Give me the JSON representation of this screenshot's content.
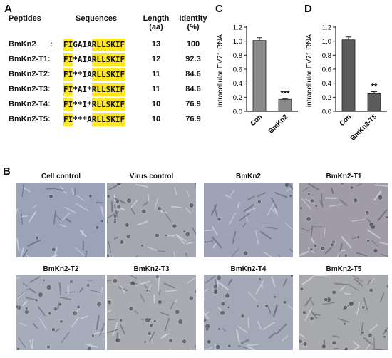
{
  "panels": {
    "a": "A",
    "b": "B",
    "c": "C",
    "d": "D"
  },
  "table": {
    "headers": {
      "peptides": "Peptides",
      "sequences": "Sequences",
      "length": "Length",
      "length_unit": "(aa)",
      "identity": "Identity",
      "identity_unit": "(%)"
    },
    "rows": [
      {
        "name": "BmKn2",
        "sep": ":",
        "seq": [
          {
            "t": "FI",
            "h": true
          },
          {
            "t": "GAIA",
            "h": false
          },
          {
            "t": "RLLSKIF",
            "h": true
          }
        ],
        "length": "13",
        "identity": "100"
      },
      {
        "name": "BmKn2-T1:",
        "sep": "",
        "seq": [
          {
            "t": "FI",
            "h": true
          },
          {
            "t": "*AIA",
            "h": false
          },
          {
            "t": "RLLSKIF",
            "h": true
          }
        ],
        "length": "12",
        "identity": "92.3"
      },
      {
        "name": "BmKn2-T2:",
        "sep": "",
        "seq": [
          {
            "t": "FI",
            "h": true
          },
          {
            "t": "**IA",
            "h": false
          },
          {
            "t": "RLLSKIF",
            "h": true
          }
        ],
        "length": "11",
        "identity": "84.6"
      },
      {
        "name": "BmKn2-T3:",
        "sep": "",
        "seq": [
          {
            "t": "FI",
            "h": true
          },
          {
            "t": "*AI*",
            "h": false
          },
          {
            "t": "RLLSKIF",
            "h": true
          }
        ],
        "length": "11",
        "identity": "84.6"
      },
      {
        "name": "BmKn2-T4:",
        "sep": "",
        "seq": [
          {
            "t": "FI",
            "h": true
          },
          {
            "t": "**I*",
            "h": false
          },
          {
            "t": "RLLSKIF",
            "h": true
          }
        ],
        "length": "10",
        "identity": "76.9"
      },
      {
        "name": "BmKn2-T5:",
        "sep": "",
        "seq": [
          {
            "t": "FI",
            "h": true
          },
          {
            "t": "***A",
            "h": false
          },
          {
            "t": "RLLSKIF",
            "h": true
          }
        ],
        "length": "10",
        "identity": "76.9"
      }
    ]
  },
  "chart_data": [
    {
      "type": "bar",
      "panel": "C",
      "categories": [
        "Con",
        "BmKn2"
      ],
      "values": [
        1.01,
        0.17
      ],
      "errors": [
        0.04,
        0.01
      ],
      "significance": [
        "",
        "***"
      ],
      "ylabel": "intracellular EV71 RNA",
      "ylim": [
        0,
        1.2
      ],
      "yticks": [
        "0.0",
        "0.2",
        "0.4",
        "0.6",
        "0.8",
        "1.0",
        "1.2"
      ],
      "colors": [
        "#8a8a8a",
        "#8a8a8a"
      ]
    },
    {
      "type": "bar",
      "panel": "D",
      "categories": [
        "Con",
        "BmKn2-T5"
      ],
      "values": [
        1.02,
        0.25
      ],
      "errors": [
        0.04,
        0.03
      ],
      "significance": [
        "",
        "**"
      ],
      "ylabel": "intracellular EV71 RNA",
      "ylim": [
        0,
        1.2
      ],
      "yticks": [
        "0.0",
        "0.2",
        "0.4",
        "0.6",
        "0.8",
        "1.0",
        "1.2"
      ],
      "colors": [
        "#5b5b5b",
        "#5b5b5b"
      ]
    }
  ],
  "micrographs": [
    {
      "title": "Cell control",
      "bg": "#9aa3b8"
    },
    {
      "title": "Virus control",
      "bg": "#a4a7b2"
    },
    {
      "title": "BmKn2",
      "bg": "#9ea4b6"
    },
    {
      "title": "BmKn2-T1",
      "bg": "#9f9ca7"
    },
    {
      "title": "BmKn2-T2",
      "bg": "#a6acba"
    },
    {
      "title": "BmKn2-T3",
      "bg": "#a9abb0"
    },
    {
      "title": "BmKn2-T4",
      "bg": "#a3a8b6"
    },
    {
      "title": "BmKn2-T5",
      "bg": "#a8a9ad"
    }
  ]
}
